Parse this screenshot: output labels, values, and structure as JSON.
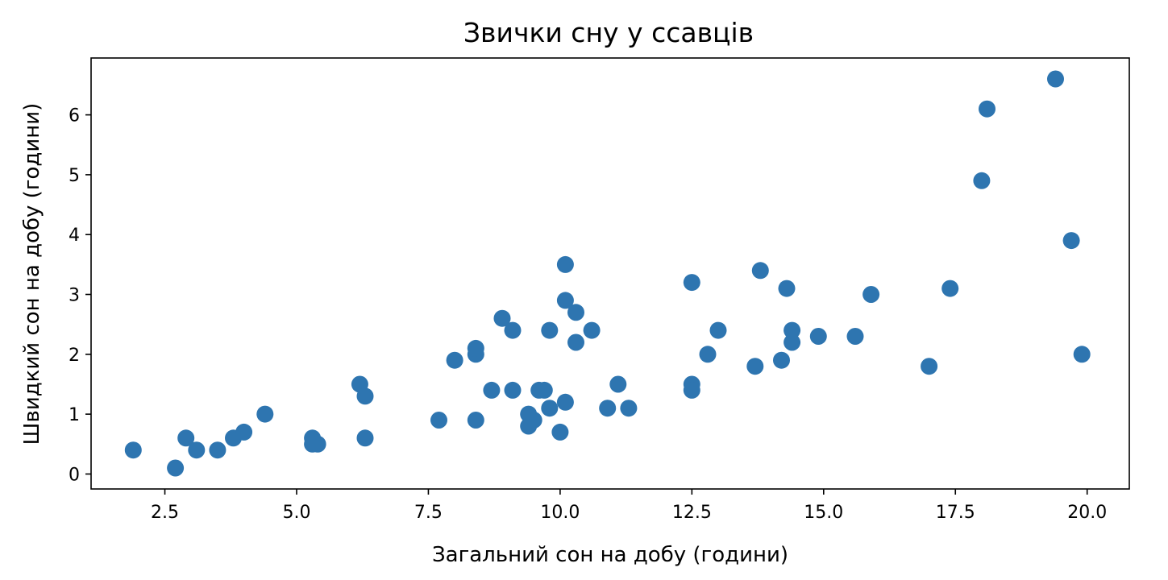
{
  "chart_data": {
    "type": "scatter",
    "title": "Звички сну у ссавців",
    "xlabel": "Загальний сон на добу (години)",
    "ylabel": "Швидкий сон на добу (години)",
    "xlim": [
      1.1,
      20.8
    ],
    "ylim": [
      -0.25,
      6.95
    ],
    "xticks": [
      2.5,
      5.0,
      7.5,
      10.0,
      12.5,
      15.0,
      17.5,
      20.0
    ],
    "xtick_labels": [
      "2.5",
      "5.0",
      "7.5",
      "10.0",
      "12.5",
      "15.0",
      "17.5",
      "20.0"
    ],
    "yticks": [
      0,
      1,
      2,
      3,
      4,
      5,
      6
    ],
    "ytick_labels": [
      "0",
      "1",
      "2",
      "3",
      "4",
      "5",
      "6"
    ],
    "grid": false,
    "marker_color": "#2e75b0",
    "points": [
      [
        1.9,
        0.4
      ],
      [
        2.7,
        0.1
      ],
      [
        2.9,
        0.6
      ],
      [
        3.1,
        0.4
      ],
      [
        3.5,
        0.4
      ],
      [
        3.8,
        0.6
      ],
      [
        4.0,
        0.7
      ],
      [
        4.4,
        1.0
      ],
      [
        5.3,
        0.6
      ],
      [
        5.3,
        0.5
      ],
      [
        5.4,
        0.5
      ],
      [
        6.2,
        1.5
      ],
      [
        6.3,
        1.3
      ],
      [
        6.3,
        0.6
      ],
      [
        7.7,
        0.9
      ],
      [
        8.0,
        1.9
      ],
      [
        8.4,
        2.0
      ],
      [
        8.4,
        2.1
      ],
      [
        8.4,
        0.9
      ],
      [
        8.7,
        1.4
      ],
      [
        8.9,
        2.6
      ],
      [
        9.1,
        2.4
      ],
      [
        9.1,
        1.4
      ],
      [
        9.4,
        1.0
      ],
      [
        9.4,
        0.8
      ],
      [
        9.5,
        0.9
      ],
      [
        9.6,
        1.4
      ],
      [
        9.7,
        1.4
      ],
      [
        9.8,
        2.4
      ],
      [
        9.8,
        1.1
      ],
      [
        10.0,
        0.7
      ],
      [
        10.1,
        3.5
      ],
      [
        10.1,
        2.9
      ],
      [
        10.1,
        1.2
      ],
      [
        10.3,
        2.7
      ],
      [
        10.3,
        2.2
      ],
      [
        10.6,
        2.4
      ],
      [
        10.9,
        1.1
      ],
      [
        11.1,
        1.5
      ],
      [
        11.3,
        1.1
      ],
      [
        12.5,
        3.2
      ],
      [
        12.5,
        1.5
      ],
      [
        12.5,
        1.4
      ],
      [
        12.8,
        2.0
      ],
      [
        13.0,
        2.4
      ],
      [
        13.7,
        1.8
      ],
      [
        13.8,
        3.4
      ],
      [
        14.2,
        1.9
      ],
      [
        14.3,
        3.1
      ],
      [
        14.4,
        2.4
      ],
      [
        14.4,
        2.2
      ],
      [
        14.9,
        2.3
      ],
      [
        15.6,
        2.3
      ],
      [
        15.9,
        3.0
      ],
      [
        17.0,
        1.8
      ],
      [
        17.4,
        3.1
      ],
      [
        18.0,
        4.9
      ],
      [
        18.1,
        6.1
      ],
      [
        19.4,
        6.6
      ],
      [
        19.7,
        3.9
      ],
      [
        19.9,
        2.0
      ]
    ]
  }
}
